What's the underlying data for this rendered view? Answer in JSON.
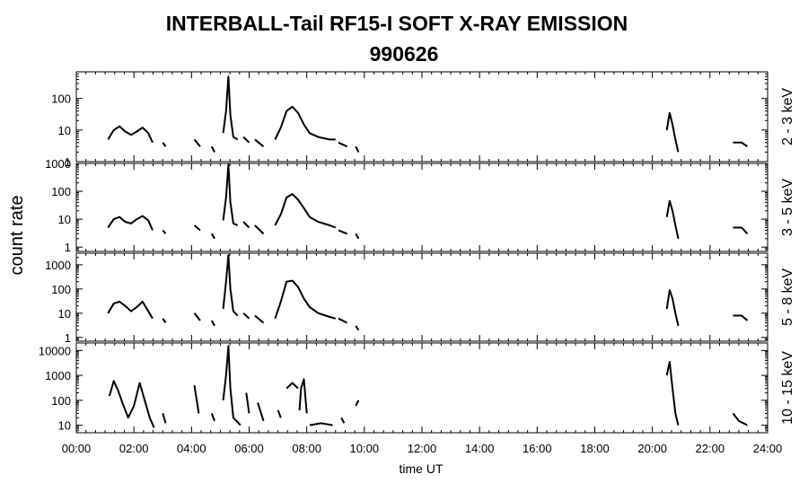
{
  "chart_data": {
    "type": "line",
    "title": "INTERBALL-Tail RF15-I SOFT X-RAY EMISSION",
    "subtitle": "990626",
    "xlabel": "time UT",
    "ylabel": "count rate",
    "x_ticks": [
      "00:00",
      "02:00",
      "04:00",
      "06:00",
      "08:00",
      "10:00",
      "12:00",
      "14:00",
      "16:00",
      "18:00",
      "20:00",
      "22:00",
      "24:00"
    ],
    "xlim": [
      0,
      24
    ],
    "y_scale": "log",
    "panels": [
      {
        "band": "2 - 3 keV",
        "ylim": [
          1,
          700
        ],
        "y_ticks": [
          "1",
          "10",
          "100"
        ],
        "segments": [
          {
            "x": [
              1.1,
              1.3,
              1.5,
              1.7,
              1.9,
              2.1,
              2.3,
              2.5,
              2.65
            ],
            "y": [
              5,
              10,
              13,
              9,
              7,
              9,
              12,
              8,
              4
            ]
          },
          {
            "x": [
              3.0,
              3.1
            ],
            "y": [
              4,
              3
            ]
          },
          {
            "x": [
              4.1,
              4.3
            ],
            "y": [
              5,
              3
            ]
          },
          {
            "x": [
              4.7,
              4.8
            ],
            "y": [
              3,
              2
            ]
          },
          {
            "x": [
              5.1,
              5.2,
              5.28,
              5.35,
              5.45,
              5.6
            ],
            "y": [
              8,
              40,
              500,
              30,
              6,
              5
            ]
          },
          {
            "x": [
              5.8,
              6.0
            ],
            "y": [
              6,
              4
            ]
          },
          {
            "x": [
              6.2,
              6.5
            ],
            "y": [
              5,
              3
            ]
          },
          {
            "x": [
              6.9,
              7.1,
              7.3,
              7.5,
              7.7,
              7.9,
              8.1,
              8.4,
              8.8,
              9.0
            ],
            "y": [
              5,
              12,
              40,
              55,
              35,
              15,
              8,
              6,
              5,
              5
            ]
          },
          {
            "x": [
              9.1,
              9.4
            ],
            "y": [
              4,
              3
            ]
          },
          {
            "x": [
              9.7,
              9.8
            ],
            "y": [
              3,
              2
            ]
          },
          {
            "x": [
              20.5,
              20.6,
              20.7,
              20.8,
              20.9
            ],
            "y": [
              10,
              35,
              15,
              5,
              2
            ]
          },
          {
            "x": [
              22.8,
              23.1,
              23.3
            ],
            "y": [
              4,
              4,
              3
            ]
          }
        ]
      },
      {
        "band": "3 - 5 keV",
        "ylim": [
          0.7,
          1000
        ],
        "y_ticks": [
          "1",
          "10",
          "100",
          "1000"
        ],
        "segments": [
          {
            "x": [
              1.1,
              1.3,
              1.5,
              1.7,
              1.9,
              2.1,
              2.3,
              2.5,
              2.65
            ],
            "y": [
              5,
              10,
              12,
              8,
              7,
              10,
              13,
              9,
              4
            ]
          },
          {
            "x": [
              3.0,
              3.1
            ],
            "y": [
              4,
              3
            ]
          },
          {
            "x": [
              4.1,
              4.3
            ],
            "y": [
              6,
              4
            ]
          },
          {
            "x": [
              4.7,
              4.8
            ],
            "y": [
              3,
              2
            ]
          },
          {
            "x": [
              5.1,
              5.2,
              5.28,
              5.35,
              5.45,
              5.6
            ],
            "y": [
              9,
              60,
              900,
              40,
              7,
              6
            ]
          },
          {
            "x": [
              5.8,
              6.0
            ],
            "y": [
              8,
              5
            ]
          },
          {
            "x": [
              6.2,
              6.5
            ],
            "y": [
              6,
              3
            ]
          },
          {
            "x": [
              6.9,
              7.1,
              7.3,
              7.5,
              7.7,
              7.9,
              8.1,
              8.4,
              8.8,
              9.0
            ],
            "y": [
              6,
              15,
              60,
              80,
              50,
              25,
              12,
              8,
              6,
              5
            ]
          },
          {
            "x": [
              9.1,
              9.4
            ],
            "y": [
              4,
              3
            ]
          },
          {
            "x": [
              9.7,
              9.8
            ],
            "y": [
              3,
              2
            ]
          },
          {
            "x": [
              20.5,
              20.6,
              20.7,
              20.8,
              20.9
            ],
            "y": [
              12,
              45,
              20,
              6,
              2
            ]
          },
          {
            "x": [
              22.8,
              23.1,
              23.3
            ],
            "y": [
              5,
              5,
              3
            ]
          }
        ]
      },
      {
        "band": "5 - 8 keV",
        "ylim": [
          0.7,
          3000
        ],
        "y_ticks": [
          "1",
          "10",
          "100",
          "1000"
        ],
        "segments": [
          {
            "x": [
              1.1,
              1.3,
              1.5,
              1.7,
              1.9,
              2.1,
              2.3,
              2.5,
              2.65
            ],
            "y": [
              10,
              25,
              30,
              20,
              12,
              18,
              30,
              12,
              6
            ]
          },
          {
            "x": [
              3.0,
              3.1
            ],
            "y": [
              6,
              4
            ]
          },
          {
            "x": [
              4.1,
              4.3
            ],
            "y": [
              10,
              5
            ]
          },
          {
            "x": [
              4.7,
              4.8
            ],
            "y": [
              5,
              3
            ]
          },
          {
            "x": [
              5.1,
              5.2,
              5.28,
              5.35,
              5.45,
              5.6
            ],
            "y": [
              15,
              200,
              2500,
              100,
              12,
              8
            ]
          },
          {
            "x": [
              5.8,
              6.0
            ],
            "y": [
              10,
              6
            ]
          },
          {
            "x": [
              6.2,
              6.5
            ],
            "y": [
              8,
              4
            ]
          },
          {
            "x": [
              6.9,
              7.1,
              7.3,
              7.5,
              7.7,
              7.9,
              8.1,
              8.4,
              8.8,
              9.0
            ],
            "y": [
              6,
              30,
              200,
              220,
              120,
              40,
              18,
              10,
              7,
              6
            ]
          },
          {
            "x": [
              9.1,
              9.4
            ],
            "y": [
              6,
              4
            ]
          },
          {
            "x": [
              9.7,
              9.8
            ],
            "y": [
              3,
              2
            ]
          },
          {
            "x": [
              20.5,
              20.6,
              20.7,
              20.8,
              20.9
            ],
            "y": [
              15,
              90,
              40,
              10,
              3
            ]
          },
          {
            "x": [
              22.8,
              23.1,
              23.3
            ],
            "y": [
              8,
              8,
              5
            ]
          }
        ]
      },
      {
        "band": "10 - 15 keV",
        "ylim": [
          5,
          20000
        ],
        "y_ticks": [
          "10",
          "100",
          "1000",
          "10000"
        ],
        "segments": [
          {
            "x": [
              1.15,
              1.3,
              1.45,
              1.6,
              1.8,
              2.0,
              2.2,
              2.4,
              2.55,
              2.7
            ],
            "y": [
              150,
              600,
              250,
              80,
              20,
              60,
              500,
              80,
              20,
              8
            ]
          },
          {
            "x": [
              3.0,
              3.1
            ],
            "y": [
              30,
              12
            ]
          },
          {
            "x": [
              4.1,
              4.25
            ],
            "y": [
              400,
              30
            ]
          },
          {
            "x": [
              4.7,
              4.8
            ],
            "y": [
              30,
              15
            ]
          },
          {
            "x": [
              5.1,
              5.2,
              5.28,
              5.35,
              5.45,
              5.7
            ],
            "y": [
              100,
              1000,
              15000,
              300,
              20,
              10
            ]
          },
          {
            "x": [
              5.9,
              6.0
            ],
            "y": [
              200,
              30
            ]
          },
          {
            "x": [
              6.3,
              6.5
            ],
            "y": [
              80,
              15
            ]
          },
          {
            "x": [
              7.0,
              7.1
            ],
            "y": [
              40,
              20
            ]
          },
          {
            "x": [
              7.3,
              7.5,
              7.7
            ],
            "y": [
              300,
              500,
              300
            ]
          },
          {
            "x": [
              7.75,
              7.8,
              7.9,
              8.0
            ],
            "y": [
              40,
              300,
              700,
              30
            ]
          },
          {
            "x": [
              8.1,
              8.5,
              8.9
            ],
            "y": [
              10,
              12,
              10
            ]
          },
          {
            "x": [
              9.2,
              9.3
            ],
            "y": [
              20,
              12
            ]
          },
          {
            "x": [
              9.7,
              9.8
            ],
            "y": [
              60,
              100
            ]
          },
          {
            "x": [
              20.5,
              20.6,
              20.7,
              20.8,
              20.9
            ],
            "y": [
              1000,
              3500,
              300,
              30,
              10
            ]
          },
          {
            "x": [
              22.8,
              23.0,
              23.3
            ],
            "y": [
              30,
              15,
              10
            ]
          }
        ]
      }
    ]
  }
}
